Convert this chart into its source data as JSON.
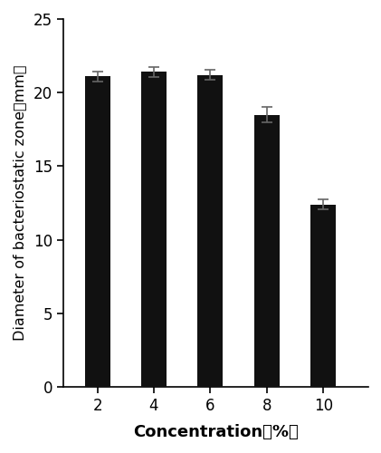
{
  "categories": [
    "2",
    "4",
    "6",
    "8",
    "10"
  ],
  "values": [
    21.1,
    21.4,
    21.2,
    18.5,
    12.4
  ],
  "errors": [
    0.35,
    0.35,
    0.35,
    0.55,
    0.35
  ],
  "bar_color": "#111111",
  "bar_width": 0.45,
  "xlabel": "Concentration（%）",
  "ylabel": "Diameter of bacteriostatic zone（mm）",
  "ylim": [
    0,
    25
  ],
  "yticks": [
    0,
    5,
    10,
    15,
    20,
    25
  ],
  "xlabel_fontsize": 13,
  "ylabel_fontsize": 11.5,
  "tick_fontsize": 12,
  "background_color": "#ffffff",
  "error_capsize": 4,
  "error_color": "#666666",
  "error_linewidth": 1.2
}
